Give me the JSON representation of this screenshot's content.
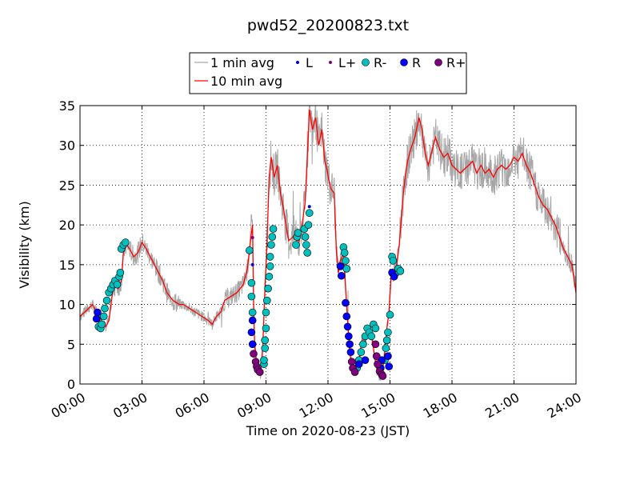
{
  "chart_data": {
    "type": "line",
    "title": "pwd52_20200823.txt",
    "xlabel": "Time on 2020-08-23 (JST)",
    "ylabel": "Visibility (km)",
    "xlim": [
      "00:00",
      "24:00"
    ],
    "ylim": [
      0,
      35
    ],
    "grid": true,
    "legend_position": "top-center",
    "x_ticks": [
      "00:00",
      "03:00",
      "06:00",
      "09:00",
      "12:00",
      "15:00",
      "18:00",
      "21:00",
      "24:00"
    ],
    "y_ticks": [
      "0",
      "5",
      "10",
      "15",
      "20",
      "25",
      "30",
      "35"
    ],
    "legend": [
      {
        "label": "1 min avg",
        "kind": "line",
        "color": "#a6a6a6"
      },
      {
        "label": "10 min avg",
        "kind": "line",
        "color": "#ff0000"
      },
      {
        "label": "L",
        "kind": "marker",
        "color": "#0000cc",
        "size": "small"
      },
      {
        "label": "L+",
        "kind": "marker",
        "color": "#7f007f",
        "size": "small"
      },
      {
        "label": "R-",
        "kind": "marker",
        "color": "#00bfbf",
        "size": "large"
      },
      {
        "label": "R",
        "kind": "marker",
        "color": "#0000ff",
        "size": "large"
      },
      {
        "label": "R+",
        "kind": "marker",
        "color": "#800080",
        "size": "large"
      }
    ],
    "series": [
      {
        "name": "10 min avg",
        "color": "#ff0000",
        "points": [
          [
            0.0,
            8.5
          ],
          [
            0.3,
            9.2
          ],
          [
            0.6,
            10.0
          ],
          [
            0.9,
            8.5
          ],
          [
            1.0,
            8.3
          ],
          [
            1.1,
            7.5
          ],
          [
            1.25,
            7.2
          ],
          [
            1.4,
            8.0
          ],
          [
            1.5,
            10.0
          ],
          [
            1.6,
            12.0
          ],
          [
            1.75,
            12.5
          ],
          [
            1.85,
            12.0
          ],
          [
            2.0,
            13.0
          ],
          [
            2.1,
            16.5
          ],
          [
            2.25,
            17.5
          ],
          [
            2.4,
            17.0
          ],
          [
            2.6,
            16.0
          ],
          [
            2.8,
            16.5
          ],
          [
            3.0,
            17.8
          ],
          [
            3.2,
            17.0
          ],
          [
            3.5,
            15.5
          ],
          [
            3.8,
            14.0
          ],
          [
            4.0,
            13.0
          ],
          [
            4.2,
            11.5
          ],
          [
            4.5,
            10.5
          ],
          [
            4.8,
            10.0
          ],
          [
            5.0,
            10.0
          ],
          [
            5.3,
            9.5
          ],
          [
            5.6,
            9.0
          ],
          [
            5.9,
            8.5
          ],
          [
            6.2,
            8.0
          ],
          [
            6.4,
            7.5
          ],
          [
            6.6,
            8.5
          ],
          [
            6.8,
            9.0
          ],
          [
            7.0,
            10.5
          ],
          [
            7.3,
            11.0
          ],
          [
            7.6,
            11.5
          ],
          [
            7.9,
            12.5
          ],
          [
            8.1,
            14.5
          ],
          [
            8.25,
            18.0
          ],
          [
            8.35,
            20.0
          ],
          [
            8.4,
            10.0
          ],
          [
            8.45,
            5.0
          ],
          [
            8.55,
            2.5
          ],
          [
            8.65,
            1.5
          ],
          [
            8.75,
            1.2
          ],
          [
            8.85,
            5.0
          ],
          [
            8.95,
            12.0
          ],
          [
            9.05,
            18.0
          ],
          [
            9.15,
            26.0
          ],
          [
            9.25,
            28.5
          ],
          [
            9.4,
            26.0
          ],
          [
            9.55,
            27.5
          ],
          [
            9.7,
            24.0
          ],
          [
            9.85,
            22.0
          ],
          [
            10.0,
            19.5
          ],
          [
            10.1,
            18.0
          ],
          [
            10.3,
            18.5
          ],
          [
            10.45,
            19.0
          ],
          [
            10.6,
            18.0
          ],
          [
            10.75,
            20.0
          ],
          [
            10.9,
            23.0
          ],
          [
            11.1,
            34.5
          ],
          [
            11.25,
            32.0
          ],
          [
            11.4,
            33.5
          ],
          [
            11.55,
            30.0
          ],
          [
            11.7,
            32.0
          ],
          [
            11.85,
            28.0
          ],
          [
            11.95,
            27.0
          ],
          [
            12.05,
            25.5
          ],
          [
            12.15,
            24.5
          ],
          [
            12.3,
            24.0
          ],
          [
            12.4,
            17.0
          ],
          [
            12.5,
            14.0
          ],
          [
            12.6,
            15.5
          ],
          [
            12.75,
            16.5
          ],
          [
            12.85,
            12.0
          ],
          [
            12.95,
            8.0
          ],
          [
            13.05,
            4.0
          ],
          [
            13.15,
            2.5
          ],
          [
            13.25,
            1.5
          ],
          [
            13.35,
            1.2
          ],
          [
            13.45,
            2.0
          ],
          [
            13.55,
            4.0
          ],
          [
            13.65,
            5.5
          ],
          [
            13.75,
            5.0
          ],
          [
            13.85,
            6.0
          ],
          [
            13.95,
            6.5
          ],
          [
            14.05,
            6.0
          ],
          [
            14.15,
            5.5
          ],
          [
            14.25,
            3.5
          ],
          [
            14.35,
            2.0
          ],
          [
            14.45,
            1.2
          ],
          [
            14.55,
            1.0
          ],
          [
            14.65,
            2.0
          ],
          [
            14.75,
            4.0
          ],
          [
            14.85,
            7.0
          ],
          [
            14.95,
            9.0
          ],
          [
            15.05,
            13.5
          ],
          [
            15.15,
            14.0
          ],
          [
            15.3,
            14.5
          ],
          [
            15.45,
            17.5
          ],
          [
            15.55,
            21.0
          ],
          [
            15.65,
            24.0
          ],
          [
            15.75,
            26.5
          ],
          [
            15.85,
            28.0
          ],
          [
            16.0,
            29.5
          ],
          [
            16.2,
            31.0
          ],
          [
            16.4,
            33.5
          ],
          [
            16.55,
            32.0
          ],
          [
            16.7,
            29.0
          ],
          [
            16.85,
            27.5
          ],
          [
            17.0,
            29.0
          ],
          [
            17.2,
            31.0
          ],
          [
            17.4,
            29.5
          ],
          [
            17.6,
            28.5
          ],
          [
            17.8,
            29.0
          ],
          [
            18.0,
            27.5
          ],
          [
            18.2,
            27.0
          ],
          [
            18.4,
            26.5
          ],
          [
            18.6,
            27.0
          ],
          [
            18.8,
            27.5
          ],
          [
            19.0,
            28.0
          ],
          [
            19.2,
            26.5
          ],
          [
            19.4,
            27.5
          ],
          [
            19.6,
            26.5
          ],
          [
            19.8,
            27.0
          ],
          [
            20.0,
            26.0
          ],
          [
            20.2,
            27.0
          ],
          [
            20.4,
            27.5
          ],
          [
            20.6,
            27.0
          ],
          [
            20.8,
            27.5
          ],
          [
            21.0,
            28.5
          ],
          [
            21.2,
            28.0
          ],
          [
            21.4,
            29.0
          ],
          [
            21.6,
            27.5
          ],
          [
            21.8,
            26.5
          ],
          [
            22.0,
            25.0
          ],
          [
            22.2,
            23.5
          ],
          [
            22.4,
            22.5
          ],
          [
            22.6,
            22.0
          ],
          [
            22.8,
            21.0
          ],
          [
            23.0,
            20.0
          ],
          [
            23.2,
            18.5
          ],
          [
            23.4,
            17.0
          ],
          [
            23.6,
            16.0
          ],
          [
            23.8,
            15.0
          ],
          [
            24.0,
            11.5
          ]
        ]
      },
      {
        "name": "R",
        "marker": "large-circle",
        "color": "#0000ff",
        "points": [
          [
            0.85,
            9.0
          ],
          [
            0.8,
            8.2
          ],
          [
            8.35,
            8.0
          ],
          [
            8.3,
            6.5
          ],
          [
            8.35,
            5.0
          ],
          [
            12.6,
            14.8
          ],
          [
            12.65,
            13.6
          ],
          [
            12.85,
            10.2
          ],
          [
            12.9,
            8.5
          ],
          [
            12.95,
            7.2
          ],
          [
            13.0,
            6.0
          ],
          [
            13.05,
            5.0
          ],
          [
            13.1,
            4.0
          ],
          [
            13.5,
            2.5
          ],
          [
            13.8,
            3.0
          ],
          [
            14.55,
            2.0
          ],
          [
            14.6,
            3.0
          ],
          [
            14.9,
            3.5
          ],
          [
            14.95,
            2.2
          ],
          [
            15.1,
            14.0
          ],
          [
            15.2,
            13.5
          ]
        ]
      },
      {
        "name": "R+",
        "marker": "large-circle",
        "color": "#800080",
        "points": [
          [
            8.4,
            3.8
          ],
          [
            8.5,
            2.8
          ],
          [
            8.55,
            2.2
          ],
          [
            8.6,
            1.8
          ],
          [
            8.7,
            1.5
          ],
          [
            13.15,
            2.8
          ],
          [
            13.2,
            2.0
          ],
          [
            13.3,
            1.5
          ],
          [
            14.3,
            5.0
          ],
          [
            14.35,
            3.5
          ],
          [
            14.4,
            2.5
          ],
          [
            14.5,
            1.6
          ],
          [
            14.6,
            1.2
          ],
          [
            14.65,
            1.0
          ]
        ]
      },
      {
        "name": "R-",
        "marker": "large-circle",
        "color": "#00bfbf",
        "points": [
          [
            0.9,
            7.2
          ],
          [
            1.0,
            7.0
          ],
          [
            1.05,
            7.5
          ],
          [
            1.15,
            8.5
          ],
          [
            1.2,
            9.5
          ],
          [
            1.3,
            10.5
          ],
          [
            1.4,
            11.5
          ],
          [
            1.5,
            12.0
          ],
          [
            1.6,
            12.5
          ],
          [
            1.7,
            13.0
          ],
          [
            1.8,
            12.5
          ],
          [
            1.9,
            13.5
          ],
          [
            1.95,
            14.0
          ],
          [
            2.0,
            17.0
          ],
          [
            2.1,
            17.5
          ],
          [
            2.2,
            17.8
          ],
          [
            8.2,
            16.8
          ],
          [
            8.3,
            12.7
          ],
          [
            8.3,
            11.0
          ],
          [
            8.35,
            9.0
          ],
          [
            8.9,
            2.5
          ],
          [
            8.9,
            3.0
          ],
          [
            8.95,
            4.5
          ],
          [
            8.95,
            5.5
          ],
          [
            9.0,
            7.0
          ],
          [
            9.0,
            9.0
          ],
          [
            9.05,
            10.5
          ],
          [
            9.1,
            12.0
          ],
          [
            9.15,
            13.5
          ],
          [
            9.2,
            14.8
          ],
          [
            9.2,
            16.0
          ],
          [
            9.25,
            17.5
          ],
          [
            9.3,
            18.5
          ],
          [
            9.35,
            19.5
          ],
          [
            10.45,
            17.5
          ],
          [
            10.5,
            18.5
          ],
          [
            10.55,
            19.0
          ],
          [
            10.85,
            19.5
          ],
          [
            10.9,
            18.5
          ],
          [
            10.95,
            17.5
          ],
          [
            11.0,
            16.5
          ],
          [
            11.05,
            20.0
          ],
          [
            11.1,
            21.5
          ],
          [
            12.75,
            17.2
          ],
          [
            12.8,
            16.5
          ],
          [
            12.85,
            15.5
          ],
          [
            12.9,
            14.5
          ],
          [
            13.4,
            2.0
          ],
          [
            13.5,
            3.0
          ],
          [
            13.6,
            4.0
          ],
          [
            13.7,
            5.0
          ],
          [
            13.8,
            6.0
          ],
          [
            13.9,
            7.0
          ],
          [
            14.0,
            6.5
          ],
          [
            14.1,
            6.0
          ],
          [
            14.2,
            7.5
          ],
          [
            14.3,
            7.0
          ],
          [
            14.75,
            3.0
          ],
          [
            14.8,
            4.5
          ],
          [
            14.85,
            5.5
          ],
          [
            14.9,
            6.5
          ],
          [
            15.0,
            8.7
          ],
          [
            15.1,
            16.0
          ],
          [
            15.15,
            15.5
          ],
          [
            15.3,
            14.0
          ],
          [
            15.4,
            14.5
          ],
          [
            15.5,
            14.2
          ]
        ]
      },
      {
        "name": "L",
        "marker": "small-circle",
        "color": "#0000cc",
        "points": [
          [
            8.35,
            15.0
          ],
          [
            11.1,
            22.3
          ]
        ]
      },
      {
        "name": "L+",
        "marker": "small-circle",
        "color": "#7f007f",
        "points": [
          [
            8.35,
            18.4
          ]
        ]
      }
    ]
  }
}
